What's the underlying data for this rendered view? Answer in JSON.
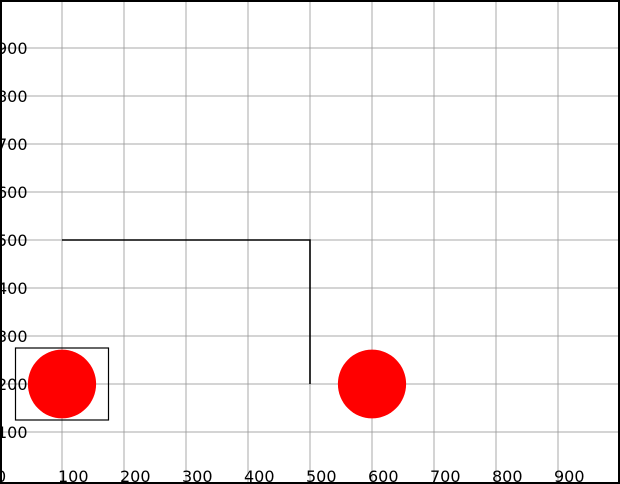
{
  "canvas": {
    "x_range": [
      0,
      1000
    ],
    "y_range": [
      0,
      1000
    ],
    "grid": true,
    "grid_step": 100,
    "x_ticks": [
      "0",
      "100",
      "200",
      "300",
      "400",
      "500",
      "600",
      "700",
      "800",
      "900"
    ],
    "y_ticks": [
      "100",
      "200",
      "300",
      "400",
      "500",
      "600",
      "700",
      "800",
      "900"
    ]
  },
  "scene": {
    "path_points": [
      [
        100,
        500
      ],
      [
        500,
        500
      ],
      [
        500,
        200
      ]
    ],
    "circles": [
      {
        "name": "red-circle-left",
        "cx": 100,
        "cy": 200,
        "r": 55,
        "color": "#ff0000"
      },
      {
        "name": "red-circle-right",
        "cx": 600,
        "cy": 200,
        "r": 55,
        "color": "#ff0000"
      }
    ],
    "selection_box": {
      "x0": 25,
      "y0": 125,
      "x1": 175,
      "y1": 275
    }
  },
  "colors": {
    "grid": "#9a9a9a",
    "frame": "#000000",
    "circle": "#ff0000"
  }
}
